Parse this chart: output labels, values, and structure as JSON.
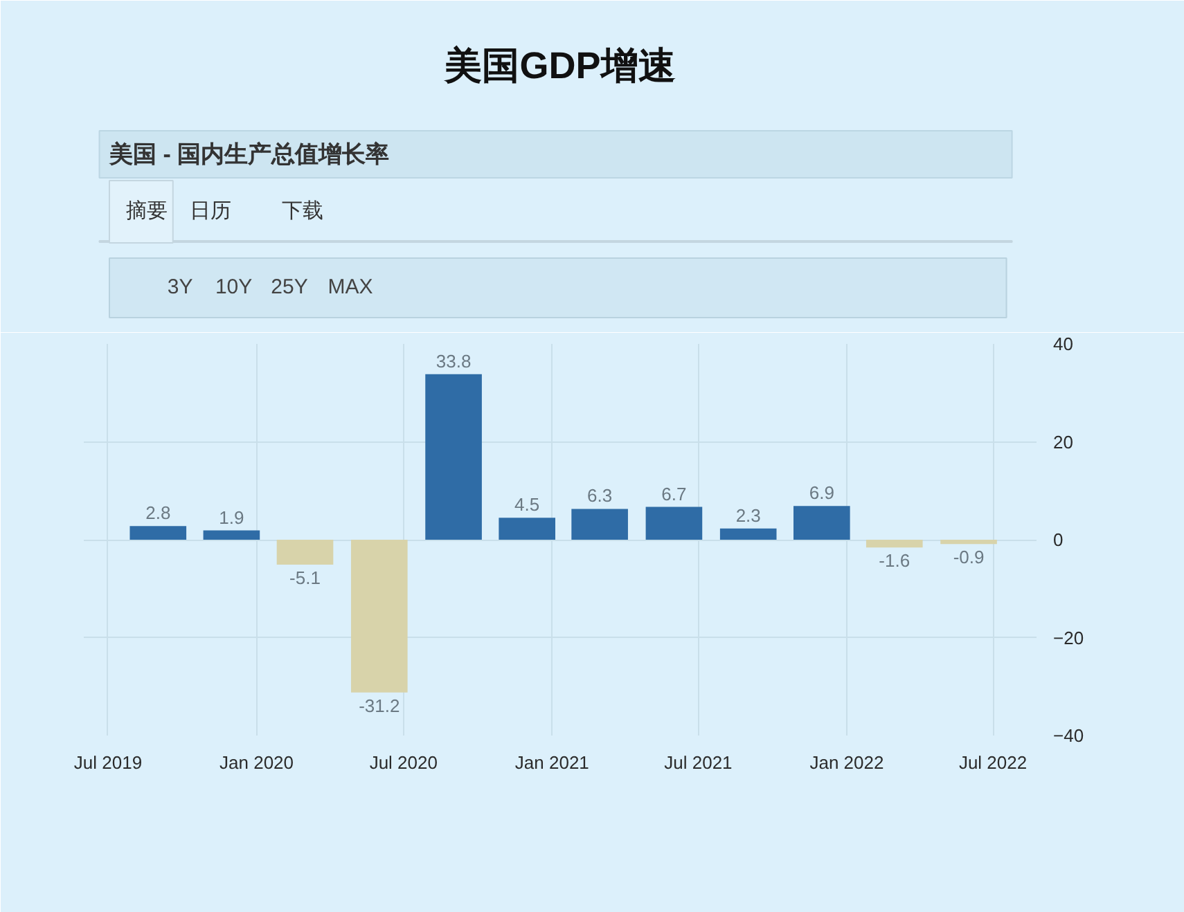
{
  "chart_data": {
    "type": "bar",
    "title": "美国GDP增速",
    "subtitle": "美国 - 国内生产总值增长率",
    "annotations": [
      "摘要",
      "日历",
      "下载",
      "3Y",
      "10Y",
      "25Y",
      "MAX"
    ],
    "x": [
      "2019-09",
      "2019-12",
      "2020-03",
      "2020-06",
      "2020-09",
      "2020-12",
      "2021-03",
      "2021-06",
      "2021-09",
      "2021-12",
      "2022-03",
      "2022-06"
    ],
    "values": [
      2.8,
      1.9,
      -5.1,
      -31.2,
      33.8,
      4.5,
      6.3,
      6.7,
      2.3,
      6.9,
      -1.6,
      -0.9
    ],
    "colors": [
      "#2f6ca6",
      "#2f6ca6",
      "#d8d3aa",
      "#d8d3aa",
      "#2f6ca6",
      "#2f6ca6",
      "#2f6ca6",
      "#2f6ca6",
      "#2f6ca6",
      "#2f6ca6",
      "#d8d3aa",
      "#d8d3aa"
    ],
    "xlim": [
      "2019-06-01",
      "2022-08-24"
    ],
    "xticks": [
      {
        "value": "2019-07",
        "label": "Jul 2019"
      },
      {
        "value": "2020-01",
        "label": "Jan 2020"
      },
      {
        "value": "2020-07",
        "label": "Jul 2020"
      },
      {
        "value": "2021-01",
        "label": "Jan 2021"
      },
      {
        "value": "2021-07",
        "label": "Jul 2021"
      },
      {
        "value": "2022-01",
        "label": "Jan 2022"
      },
      {
        "value": "2022-07",
        "label": "Jul 2022"
      }
    ],
    "ylim": [
      -40,
      40
    ],
    "yticks": [
      -40,
      -20,
      0,
      20,
      40
    ],
    "grid": true,
    "data_labels": true
  }
}
